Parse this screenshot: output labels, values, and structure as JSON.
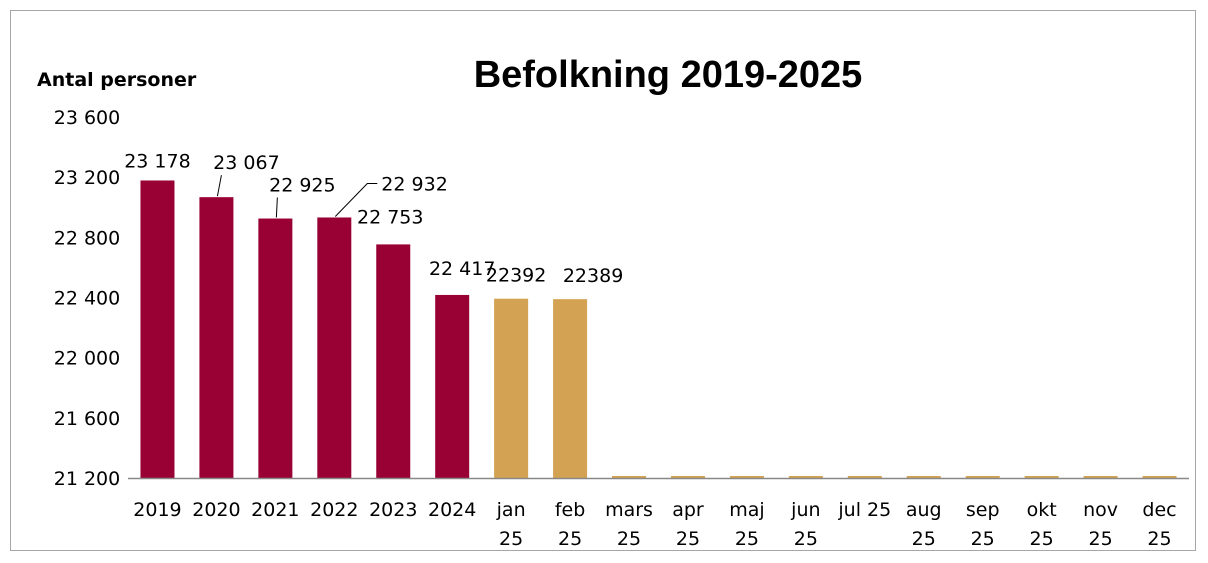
{
  "chart_data": {
    "type": "bar",
    "title": "Befolkning 2019-2025",
    "ylabel": "Antal personer",
    "xlabel": "",
    "ylim": [
      21200,
      23600
    ],
    "yticks": [
      "23 600",
      "23 200",
      "22 800",
      "22 400",
      "22 000",
      "21 600",
      "21 200"
    ],
    "ytick_values": [
      23600,
      23200,
      22800,
      22400,
      22000,
      21600,
      21200
    ],
    "grid": false,
    "legend": "none",
    "categories": [
      [
        "2019"
      ],
      [
        "2020"
      ],
      [
        "2021"
      ],
      [
        "2022"
      ],
      [
        "2023"
      ],
      [
        "2024"
      ],
      [
        "jan",
        "25"
      ],
      [
        "feb",
        "25"
      ],
      [
        "mars",
        "25"
      ],
      [
        "apr",
        "25"
      ],
      [
        "maj",
        "25"
      ],
      [
        "jun",
        "25"
      ],
      [
        "jul 25"
      ],
      [
        "aug",
        "25"
      ],
      [
        "sep",
        "25"
      ],
      [
        "okt",
        "25"
      ],
      [
        "nov",
        "25"
      ],
      [
        "dec",
        "25"
      ]
    ],
    "values": [
      23178,
      23067,
      22925,
      22932,
      22753,
      22417,
      22392,
      22389,
      null,
      null,
      null,
      null,
      null,
      null,
      null,
      null,
      null,
      null
    ],
    "data_labels": [
      "23 178",
      "23 067",
      "22 925",
      "22 932",
      "22 753",
      "22 417",
      "22392",
      "22389",
      "",
      "",
      "",
      "",
      "",
      "",
      "",
      "",
      "",
      ""
    ],
    "colors": {
      "annual": "#990033",
      "monthly": "#d4a253",
      "axis": "#888888"
    },
    "bar_color_group": [
      "annual",
      "annual",
      "annual",
      "annual",
      "annual",
      "annual",
      "monthly",
      "monthly",
      "monthly",
      "monthly",
      "monthly",
      "monthly",
      "monthly",
      "monthly",
      "monthly",
      "monthly",
      "monthly",
      "monthly"
    ]
  }
}
